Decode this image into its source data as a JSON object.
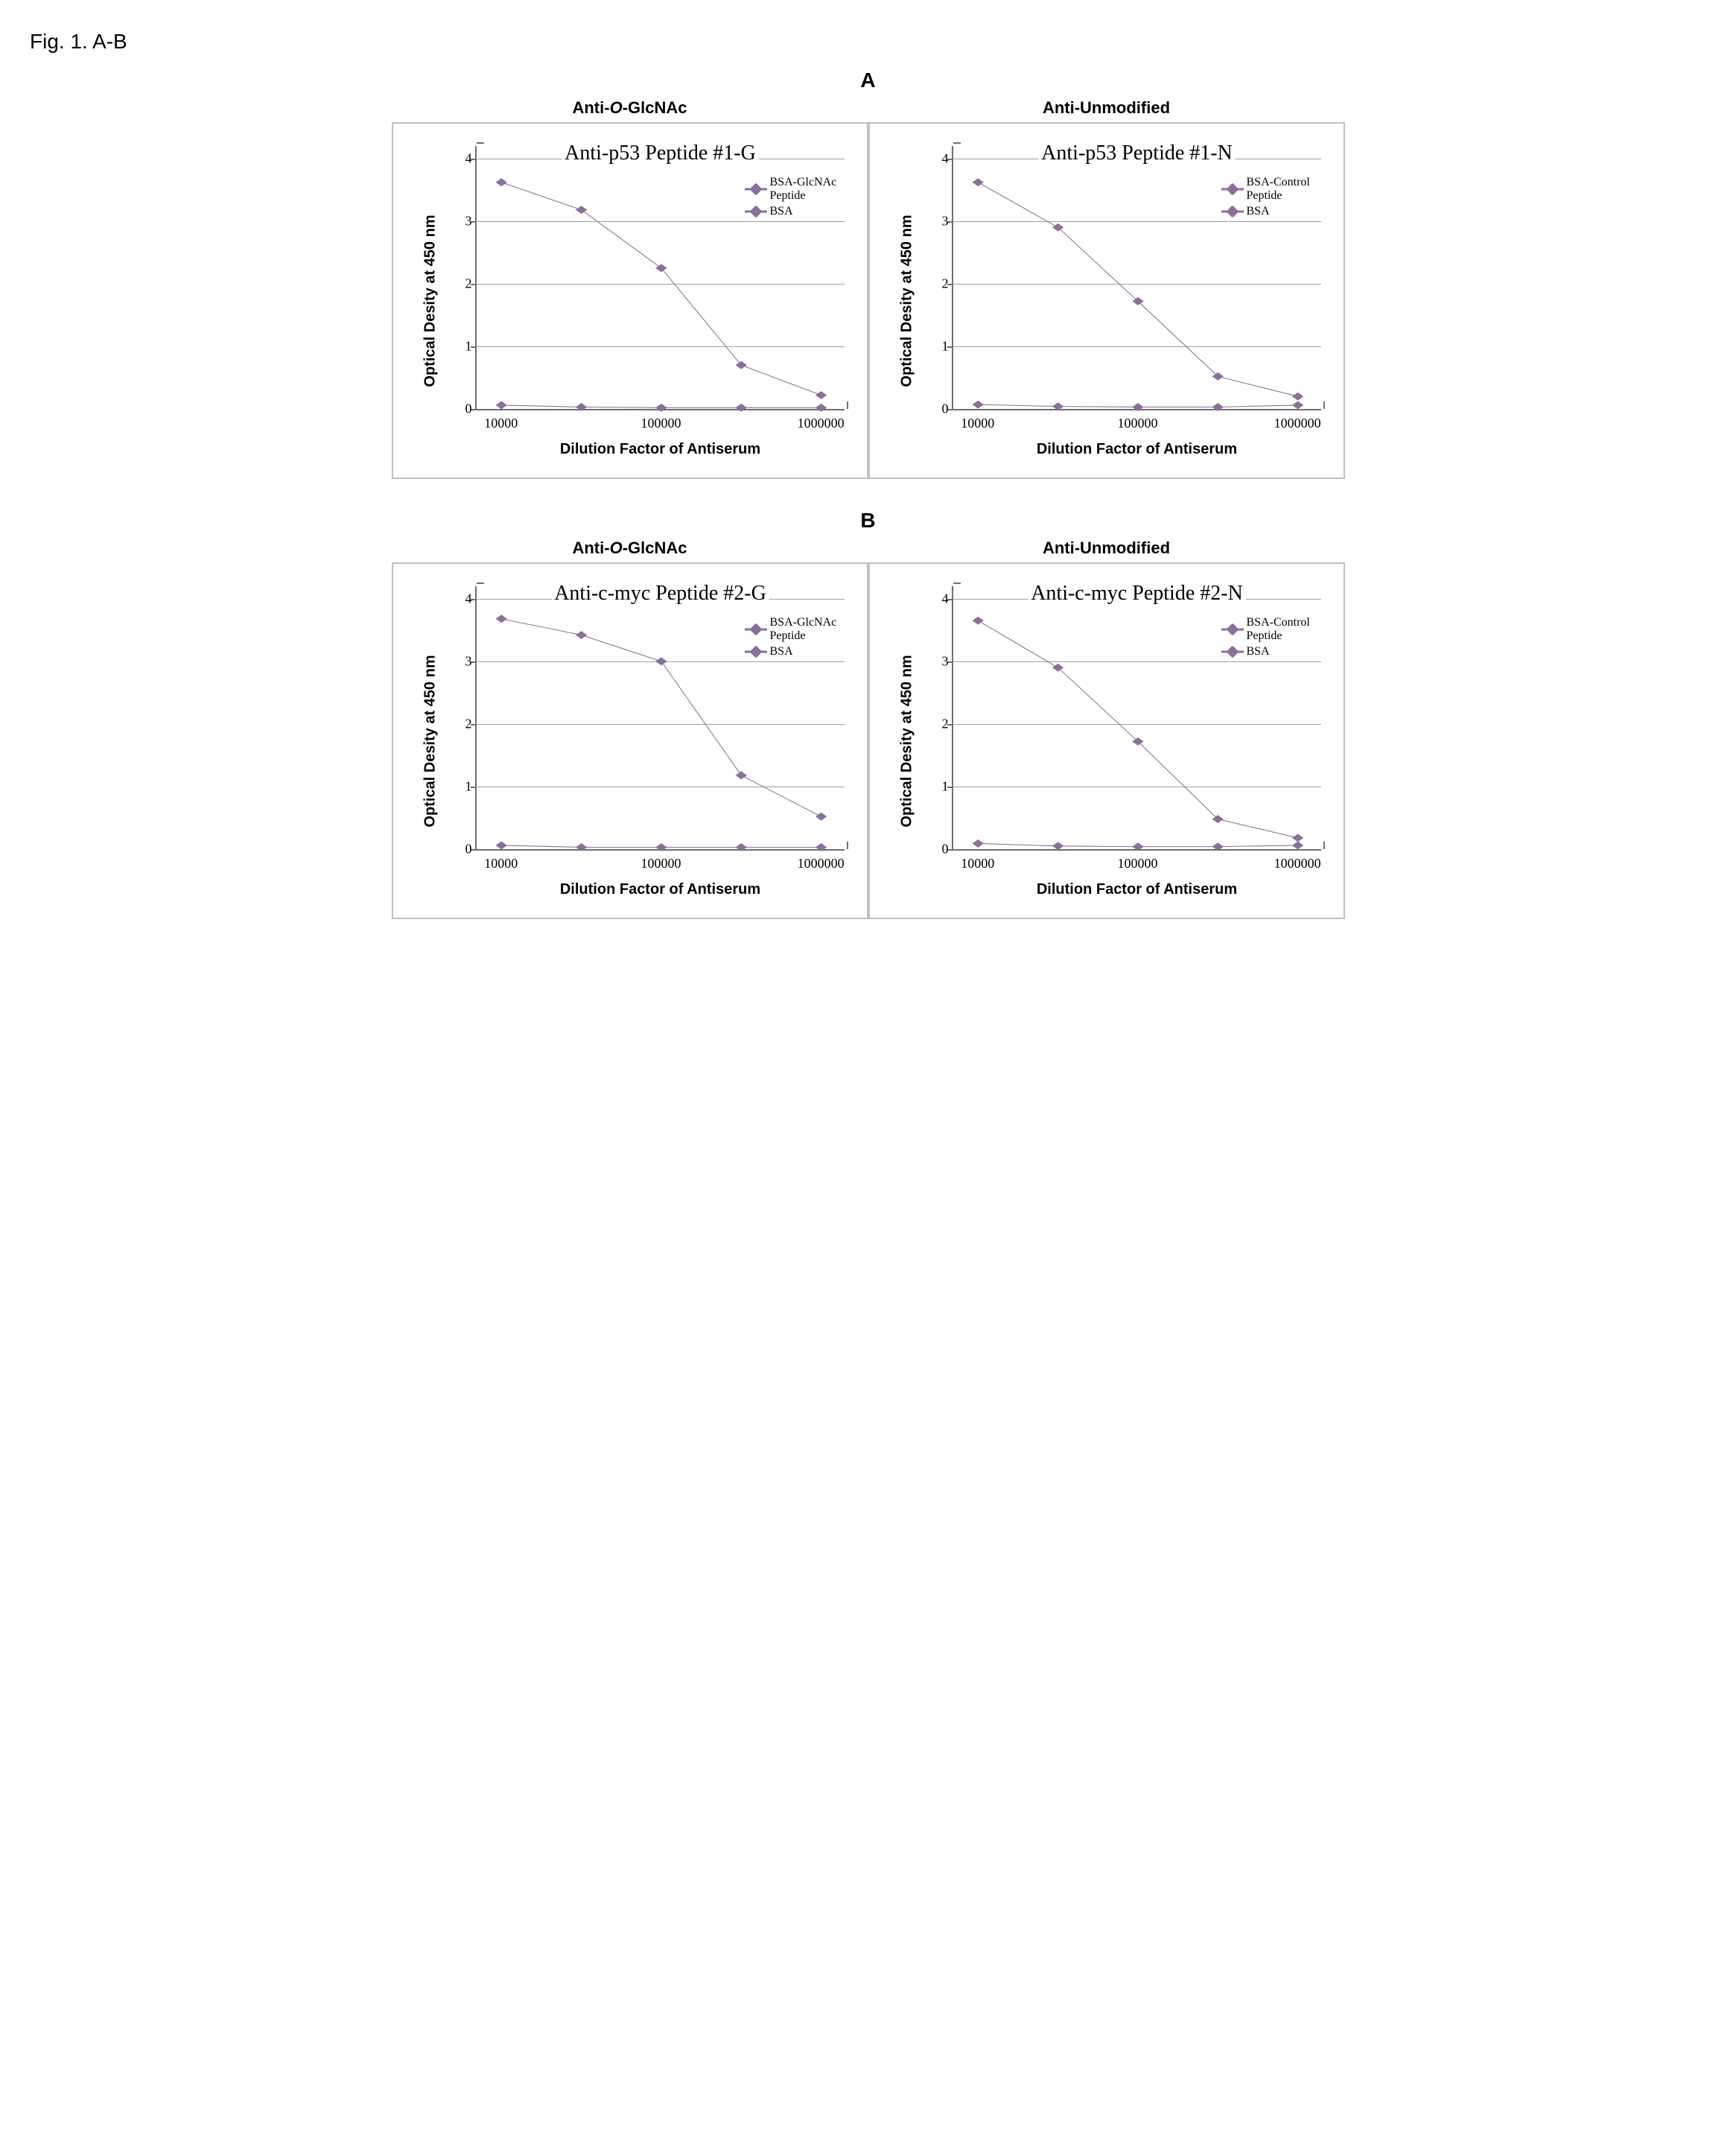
{
  "figure_label": "Fig. 1. A-B",
  "sections": [
    {
      "letter": "A",
      "panels": [
        {
          "header_html": "Anti-<span class='ital'>O</span>-GlcNAc",
          "chart": {
            "type": "line",
            "title": "Anti-p53 Peptide #1-G",
            "ylabel": "Optical Desity at 450 nm",
            "xlabel": "Dilution Factor of Antiserum",
            "ylim": [
              0,
              4.2
            ],
            "yticks": [
              0,
              1,
              2,
              3,
              4
            ],
            "xscale": "log",
            "xlim": [
              7000,
              1400000
            ],
            "xtick_positions": [
              10000,
              100000,
              1000000
            ],
            "xtick_labels": [
              "10000",
              "100000",
              "1000000"
            ],
            "series": [
              {
                "name": "BSA-GlcNAc Peptide",
                "color": "#8a6f9c",
                "marker": "diamond",
                "x": [
                  10000,
                  31623,
                  100000,
                  316228,
                  1000000
                ],
                "y": [
                  3.62,
                  3.18,
                  2.25,
                  0.7,
                  0.22
                ]
              },
              {
                "name": "BSA",
                "color": "#8a6f9c",
                "marker": "diamond",
                "x": [
                  10000,
                  31623,
                  100000,
                  316228,
                  1000000
                ],
                "y": [
                  0.06,
                  0.03,
                  0.02,
                  0.02,
                  0.02
                ]
              }
            ],
            "legend": [
              {
                "label": "BSA-GlcNAc Peptide",
                "color": "#8a6f9c"
              },
              {
                "label": "BSA",
                "color": "#8a6f9c"
              }
            ],
            "line_width": 3,
            "marker_size": 12,
            "grid_color": "#a0a0a0",
            "axis_color": "#6f6f6f",
            "background_color": "#ffffff",
            "title_fontsize": 28,
            "label_fontsize": 20,
            "tick_fontsize": 18
          }
        },
        {
          "header_html": "Anti-Unmodified",
          "chart": {
            "type": "line",
            "title": "Anti-p53 Peptide #1-N",
            "ylabel": "Optical Desity at 450 nm",
            "xlabel": "Dilution Factor of Antiserum",
            "ylim": [
              0,
              4.2
            ],
            "yticks": [
              0,
              1,
              2,
              3,
              4
            ],
            "xscale": "log",
            "xlim": [
              7000,
              1400000
            ],
            "xtick_positions": [
              10000,
              100000,
              1000000
            ],
            "xtick_labels": [
              "10000",
              "100000",
              "1000000"
            ],
            "series": [
              {
                "name": "BSA-Control Peptide",
                "color": "#8a6f9c",
                "marker": "diamond",
                "x": [
                  10000,
                  31623,
                  100000,
                  316228,
                  1000000
                ],
                "y": [
                  3.62,
                  2.9,
                  1.72,
                  0.52,
                  0.2
                ]
              },
              {
                "name": "BSA",
                "color": "#8a6f9c",
                "marker": "diamond",
                "x": [
                  10000,
                  31623,
                  100000,
                  316228,
                  1000000
                ],
                "y": [
                  0.07,
                  0.04,
                  0.03,
                  0.03,
                  0.06
                ]
              }
            ],
            "legend": [
              {
                "label": "BSA-Control Peptide",
                "color": "#8a6f9c"
              },
              {
                "label": "BSA",
                "color": "#8a6f9c"
              }
            ],
            "line_width": 3,
            "marker_size": 12,
            "grid_color": "#a0a0a0",
            "axis_color": "#6f6f6f",
            "background_color": "#ffffff",
            "title_fontsize": 28,
            "label_fontsize": 20,
            "tick_fontsize": 18
          }
        }
      ]
    },
    {
      "letter": "B",
      "panels": [
        {
          "header_html": "Anti-<span class='ital'>O</span>-GlcNAc",
          "chart": {
            "type": "line",
            "title": "Anti-c-myc Peptide #2-G",
            "ylabel": "Optical Desity at 450 nm",
            "xlabel": "Dilution Factor of Antiserum",
            "ylim": [
              0,
              4.2
            ],
            "yticks": [
              0,
              1,
              2,
              3,
              4
            ],
            "xscale": "log",
            "xlim": [
              7000,
              1400000
            ],
            "xtick_positions": [
              10000,
              100000,
              1000000
            ],
            "xtick_labels": [
              "10000",
              "100000",
              "1000000"
            ],
            "series": [
              {
                "name": "BSA-GlcNAc Peptide",
                "color": "#8a6f9c",
                "marker": "diamond",
                "x": [
                  10000,
                  31623,
                  100000,
                  316228,
                  1000000
                ],
                "y": [
                  3.68,
                  3.42,
                  3.0,
                  1.18,
                  0.52
                ]
              },
              {
                "name": "BSA",
                "color": "#8a6f9c",
                "marker": "diamond",
                "x": [
                  10000,
                  31623,
                  100000,
                  316228,
                  1000000
                ],
                "y": [
                  0.06,
                  0.03,
                  0.03,
                  0.03,
                  0.03
                ]
              }
            ],
            "legend": [
              {
                "label": "BSA-GlcNAc Peptide",
                "color": "#8a6f9c"
              },
              {
                "label": "BSA",
                "color": "#8a6f9c"
              }
            ],
            "line_width": 3,
            "marker_size": 12,
            "grid_color": "#a0a0a0",
            "axis_color": "#6f6f6f",
            "background_color": "#ffffff",
            "title_fontsize": 28,
            "label_fontsize": 20,
            "tick_fontsize": 18
          }
        },
        {
          "header_html": "Anti-Unmodified",
          "chart": {
            "type": "line",
            "title": "Anti-c-myc Peptide #2-N",
            "ylabel": "Optical Desity at 450 nm",
            "xlabel": "Dilution Factor of Antiserum",
            "ylim": [
              0,
              4.2
            ],
            "yticks": [
              0,
              1,
              2,
              3,
              4
            ],
            "xscale": "log",
            "xlim": [
              7000,
              1400000
            ],
            "xtick_positions": [
              10000,
              100000,
              1000000
            ],
            "xtick_labels": [
              "10000",
              "100000",
              "1000000"
            ],
            "series": [
              {
                "name": "BSA-Control Peptide",
                "color": "#8a6f9c",
                "marker": "diamond",
                "x": [
                  10000,
                  31623,
                  100000,
                  316228,
                  1000000
                ],
                "y": [
                  3.65,
                  2.9,
                  1.72,
                  0.48,
                  0.18
                ]
              },
              {
                "name": "BSA",
                "color": "#8a6f9c",
                "marker": "diamond",
                "x": [
                  10000,
                  31623,
                  100000,
                  316228,
                  1000000
                ],
                "y": [
                  0.09,
                  0.05,
                  0.04,
                  0.04,
                  0.06
                ]
              }
            ],
            "legend": [
              {
                "label": "BSA-Control Peptide",
                "color": "#8a6f9c"
              },
              {
                "label": "BSA",
                "color": "#8a6f9c"
              }
            ],
            "line_width": 3,
            "marker_size": 12,
            "grid_color": "#a0a0a0",
            "axis_color": "#6f6f6f",
            "background_color": "#ffffff",
            "title_fontsize": 28,
            "label_fontsize": 20,
            "tick_fontsize": 18
          }
        }
      ]
    }
  ]
}
